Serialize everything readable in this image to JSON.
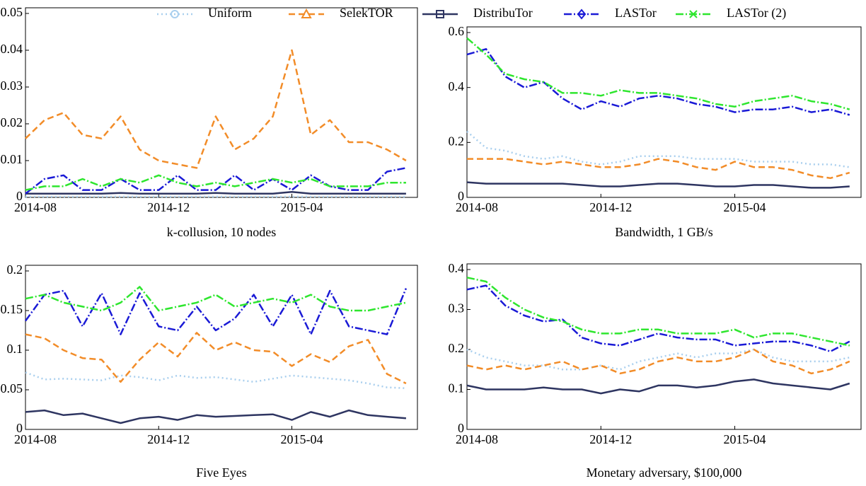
{
  "legend": [
    {
      "name": "Uniform",
      "color": "#a9cfee",
      "dash": "dotted",
      "marker": "circle"
    },
    {
      "name": "SelekTOR",
      "color": "#f28c28",
      "dash": "dashed",
      "marker": "triangle"
    },
    {
      "name": "DistribuTor",
      "color": "#2e3561",
      "dash": "solid",
      "marker": "square"
    },
    {
      "name": "LASTor",
      "color": "#1a1ad6",
      "dash": "dashdot",
      "marker": "diamond"
    },
    {
      "name": "LASTor (2)",
      "color": "#2ee62e",
      "dash": "dashdot",
      "marker": "x"
    }
  ],
  "chart_data": [
    {
      "type": "line",
      "xlabel": "k-collusion, 10 nodes",
      "categories": [
        "2014-08",
        null,
        null,
        null,
        null,
        null,
        null,
        "2014-12",
        null,
        null,
        null,
        null,
        null,
        null,
        "2015-04",
        null,
        null,
        null,
        null,
        null,
        null
      ],
      "ylim": [
        0,
        0.05
      ],
      "yticks": [
        0,
        0.01,
        0.02,
        0.03,
        0.04,
        0.05
      ],
      "series": [
        {
          "values": [
            0.0002,
            0.0002,
            0.0002,
            0.0002,
            0.0002,
            0.0002,
            0.0002,
            0.0002,
            0.0002,
            0.0002,
            0.0002,
            0.0002,
            0.0002,
            0.0002,
            0.0002,
            0.0002,
            0.0002,
            0.0002,
            0.0002,
            0.0002,
            0.0002
          ]
        },
        {
          "values": [
            0.016,
            0.021,
            0.023,
            0.017,
            0.016,
            0.022,
            0.013,
            0.01,
            0.009,
            0.008,
            0.022,
            0.013,
            0.016,
            0.022,
            0.04,
            0.017,
            0.021,
            0.015,
            0.015,
            0.013,
            0.01
          ]
        },
        {
          "values": [
            0.001,
            0.001,
            0.001,
            0.001,
            0.001,
            0.0012,
            0.001,
            0.001,
            0.001,
            0.001,
            0.0012,
            0.001,
            0.001,
            0.001,
            0.0015,
            0.001,
            0.001,
            0.001,
            0.001,
            0.001,
            0.001
          ]
        },
        {
          "values": [
            0.001,
            0.005,
            0.006,
            0.002,
            0.002,
            0.005,
            0.002,
            0.002,
            0.006,
            0.002,
            0.002,
            0.006,
            0.002,
            0.005,
            0.002,
            0.006,
            0.003,
            0.002,
            0.002,
            0.007,
            0.008
          ]
        },
        {
          "values": [
            0.002,
            0.003,
            0.003,
            0.005,
            0.003,
            0.005,
            0.004,
            0.006,
            0.004,
            0.003,
            0.004,
            0.003,
            0.004,
            0.005,
            0.004,
            0.005,
            0.003,
            0.003,
            0.003,
            0.004,
            0.004
          ]
        }
      ]
    },
    {
      "type": "line",
      "xlabel": "Bandwidth, 1 GB/s",
      "categories": [
        "2014-08",
        null,
        null,
        null,
        null,
        null,
        null,
        "2014-12",
        null,
        null,
        null,
        null,
        null,
        null,
        "2015-04",
        null,
        null,
        null,
        null,
        null,
        null
      ],
      "ylim": [
        0,
        0.6
      ],
      "yticks": [
        0,
        0.2,
        0.4,
        0.6
      ],
      "series": [
        {
          "values": [
            0.24,
            0.18,
            0.17,
            0.15,
            0.14,
            0.15,
            0.13,
            0.12,
            0.13,
            0.15,
            0.15,
            0.15,
            0.14,
            0.14,
            0.14,
            0.13,
            0.13,
            0.13,
            0.12,
            0.12,
            0.11
          ]
        },
        {
          "values": [
            0.14,
            0.14,
            0.14,
            0.13,
            0.12,
            0.13,
            0.12,
            0.11,
            0.11,
            0.12,
            0.14,
            0.13,
            0.11,
            0.1,
            0.13,
            0.11,
            0.11,
            0.1,
            0.08,
            0.07,
            0.09
          ]
        },
        {
          "values": [
            0.055,
            0.05,
            0.05,
            0.05,
            0.05,
            0.05,
            0.045,
            0.04,
            0.04,
            0.045,
            0.05,
            0.05,
            0.045,
            0.04,
            0.04,
            0.045,
            0.045,
            0.04,
            0.035,
            0.035,
            0.04
          ]
        },
        {
          "values": [
            0.52,
            0.54,
            0.44,
            0.4,
            0.42,
            0.36,
            0.32,
            0.35,
            0.33,
            0.36,
            0.37,
            0.36,
            0.34,
            0.33,
            0.31,
            0.32,
            0.32,
            0.33,
            0.31,
            0.32,
            0.3
          ]
        },
        {
          "values": [
            0.58,
            0.52,
            0.45,
            0.43,
            0.42,
            0.38,
            0.38,
            0.37,
            0.39,
            0.38,
            0.38,
            0.37,
            0.36,
            0.34,
            0.33,
            0.35,
            0.36,
            0.37,
            0.35,
            0.34,
            0.32
          ]
        }
      ]
    },
    {
      "type": "line",
      "xlabel": "Five Eyes",
      "categories": [
        "2014-08",
        null,
        null,
        null,
        null,
        null,
        null,
        "2014-12",
        null,
        null,
        null,
        null,
        null,
        null,
        "2015-04",
        null,
        null,
        null,
        null,
        null,
        null
      ],
      "ylim": [
        0,
        0.2
      ],
      "yticks": [
        0,
        0.05,
        0.1,
        0.15,
        0.2
      ],
      "series": [
        {
          "values": [
            0.072,
            0.063,
            0.064,
            0.063,
            0.062,
            0.068,
            0.066,
            0.062,
            0.068,
            0.065,
            0.066,
            0.063,
            0.06,
            0.064,
            0.068,
            0.066,
            0.064,
            0.062,
            0.058,
            0.053,
            0.052
          ]
        },
        {
          "values": [
            0.12,
            0.115,
            0.1,
            0.09,
            0.088,
            0.06,
            0.088,
            0.11,
            0.092,
            0.122,
            0.1,
            0.11,
            0.1,
            0.098,
            0.08,
            0.095,
            0.085,
            0.105,
            0.113,
            0.07,
            0.058
          ]
        },
        {
          "values": [
            0.022,
            0.024,
            0.018,
            0.02,
            0.014,
            0.008,
            0.014,
            0.016,
            0.012,
            0.018,
            0.016,
            0.017,
            0.018,
            0.019,
            0.012,
            0.022,
            0.016,
            0.024,
            0.018,
            0.016,
            0.014
          ]
        },
        {
          "values": [
            0.137,
            0.17,
            0.175,
            0.13,
            0.172,
            0.12,
            0.172,
            0.13,
            0.125,
            0.155,
            0.125,
            0.14,
            0.17,
            0.13,
            0.17,
            0.12,
            0.175,
            0.13,
            0.125,
            0.12,
            0.178
          ]
        },
        {
          "values": [
            0.165,
            0.17,
            0.16,
            0.155,
            0.15,
            0.16,
            0.18,
            0.15,
            0.155,
            0.16,
            0.17,
            0.155,
            0.16,
            0.165,
            0.16,
            0.17,
            0.155,
            0.15,
            0.15,
            0.155,
            0.16
          ]
        }
      ]
    },
    {
      "type": "line",
      "xlabel": "Monetary adversary, $100,000",
      "categories": [
        "2014-08",
        null,
        null,
        null,
        null,
        null,
        null,
        "2014-12",
        null,
        null,
        null,
        null,
        null,
        null,
        "2015-04",
        null,
        null,
        null,
        null,
        null,
        null
      ],
      "ylim": [
        0,
        0.4
      ],
      "yticks": [
        0,
        0.1,
        0.2,
        0.3,
        0.4
      ],
      "series": [
        {
          "values": [
            0.2,
            0.18,
            0.17,
            0.16,
            0.16,
            0.15,
            0.15,
            0.16,
            0.15,
            0.17,
            0.18,
            0.19,
            0.18,
            0.19,
            0.19,
            0.2,
            0.18,
            0.17,
            0.17,
            0.17,
            0.18
          ]
        },
        {
          "values": [
            0.16,
            0.15,
            0.16,
            0.15,
            0.16,
            0.17,
            0.15,
            0.16,
            0.14,
            0.15,
            0.17,
            0.18,
            0.17,
            0.17,
            0.18,
            0.2,
            0.17,
            0.16,
            0.14,
            0.15,
            0.17
          ]
        },
        {
          "values": [
            0.11,
            0.1,
            0.1,
            0.1,
            0.105,
            0.1,
            0.1,
            0.09,
            0.1,
            0.095,
            0.11,
            0.11,
            0.105,
            0.11,
            0.12,
            0.125,
            0.115,
            0.11,
            0.105,
            0.1,
            0.115
          ]
        },
        {
          "values": [
            0.35,
            0.36,
            0.31,
            0.285,
            0.27,
            0.275,
            0.23,
            0.215,
            0.21,
            0.225,
            0.24,
            0.23,
            0.225,
            0.225,
            0.21,
            0.215,
            0.22,
            0.22,
            0.21,
            0.195,
            0.22
          ]
        },
        {
          "values": [
            0.38,
            0.37,
            0.33,
            0.3,
            0.28,
            0.27,
            0.25,
            0.24,
            0.24,
            0.25,
            0.25,
            0.24,
            0.24,
            0.24,
            0.25,
            0.23,
            0.24,
            0.24,
            0.23,
            0.22,
            0.21
          ]
        }
      ]
    }
  ]
}
